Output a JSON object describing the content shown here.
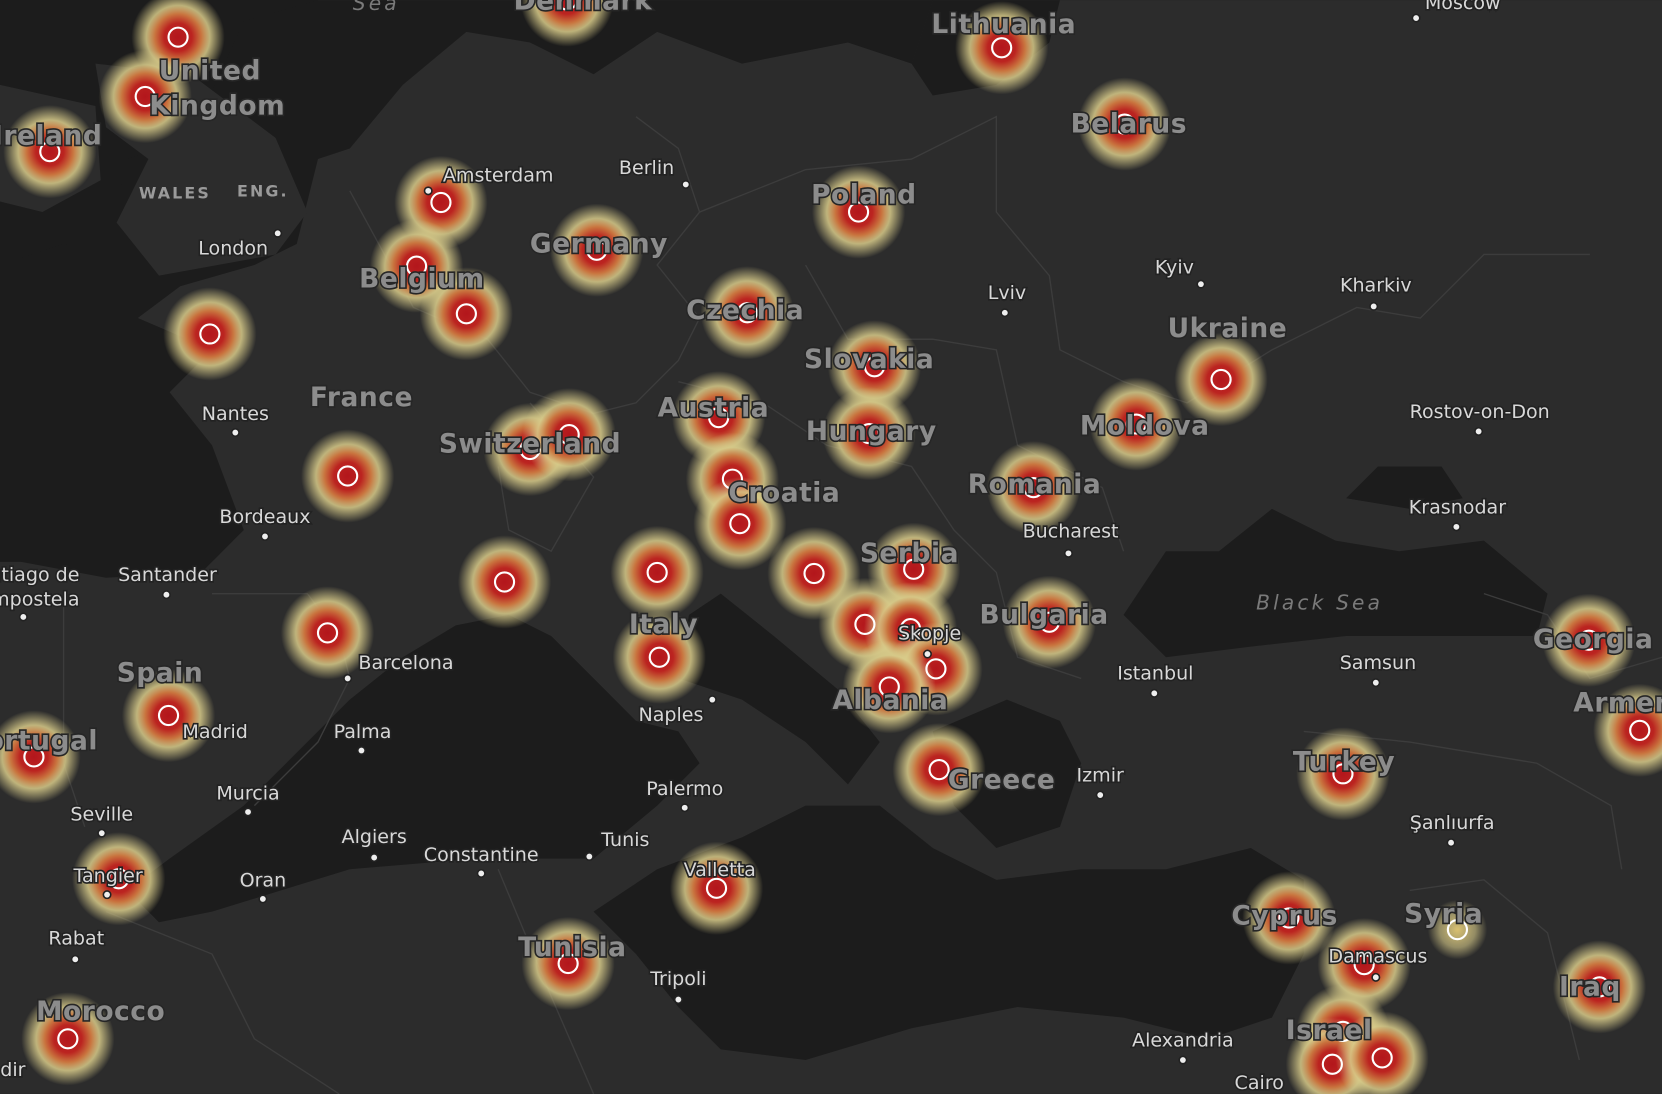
{
  "map": {
    "seas": [
      "Sea",
      "Black Sea"
    ],
    "regions": [
      "WALES",
      "ENG."
    ],
    "countries": [
      "Denmark",
      "United",
      "Kingdom",
      "Ireland",
      "Lithuania",
      "Belarus",
      "Poland",
      "Germany",
      "Belgium",
      "Czechia",
      "Ukraine",
      "Slovakia",
      "France",
      "Austria",
      "Hungary",
      "Switzerland",
      "Moldova",
      "Croatia",
      "Romania",
      "Serbia",
      "Bulgaria",
      "Georgia",
      "Spain",
      "Italy",
      "Albania",
      "Portugal",
      "Armenia",
      "Turkey",
      "Greece",
      "Syria",
      "Cyprus",
      "Tunisia",
      "Iraq",
      "Morocco",
      "Israel"
    ],
    "cities": [
      "Moscow",
      "Amsterdam",
      "Berlin",
      "London",
      "Kyiv",
      "Kharkiv",
      "Lviv",
      "Nantes",
      "Rostov-on-Don",
      "Bordeaux",
      "Bucharest",
      "Krasnodar",
      "Santiago de",
      "Compostela",
      "Santander",
      "Skopje",
      "Barcelona",
      "Istanbul",
      "Samsun",
      "Naples",
      "Madrid",
      "Palma",
      "Izmir",
      "Palermo",
      "Murcia",
      "Seville",
      "Şanlıurfa",
      "Algiers",
      "Tunis",
      "Constantine",
      "Valletta",
      "Tangier",
      "Oran",
      "Rabat",
      "Damascus",
      "Tripoli",
      "Alexandria",
      "Cairo",
      "Agadir"
    ]
  }
}
